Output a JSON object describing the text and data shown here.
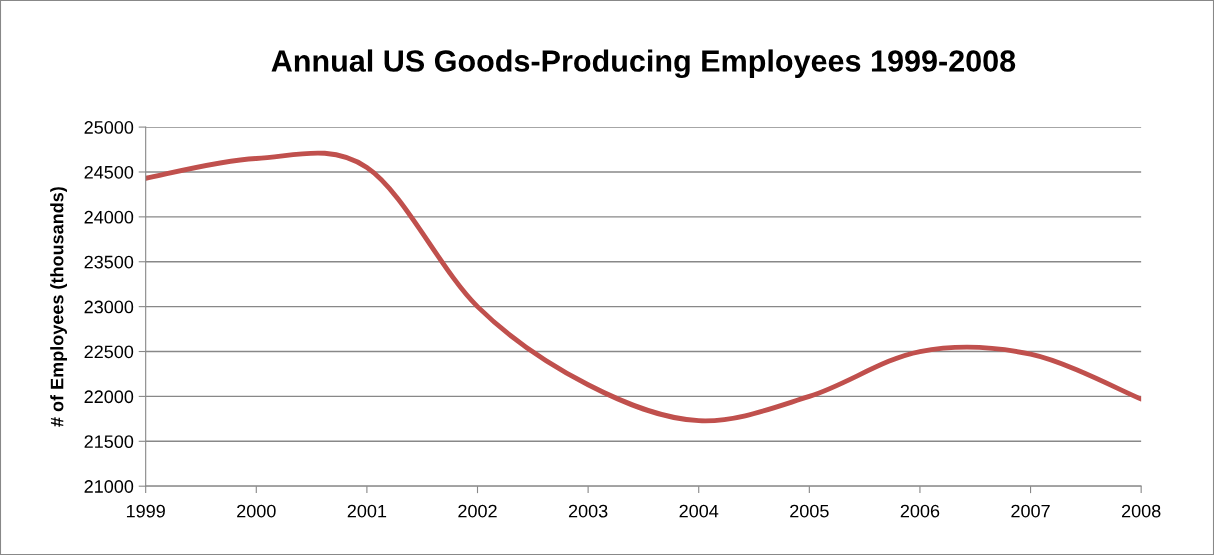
{
  "chart_data": {
    "type": "line",
    "title": "Annual US Goods-Producing Employees 1999-2008",
    "ylabel": "# of Employees (thousands)",
    "categories": [
      "1999",
      "2000",
      "2001",
      "2002",
      "2003",
      "2004",
      "2005",
      "2006",
      "2007",
      "2008"
    ],
    "series": [
      {
        "color": "#c0504d",
        "values": [
          24430,
          24650,
          24550,
          23000,
          22130,
          21730,
          22000,
          22500,
          22470,
          21970
        ]
      }
    ],
    "ylim": [
      21000,
      25000
    ],
    "yticks": [
      21000,
      21500,
      22000,
      22500,
      23000,
      23500,
      24000,
      24500,
      25000
    ],
    "grid": "y",
    "marker": "none",
    "line_style": "solid"
  }
}
